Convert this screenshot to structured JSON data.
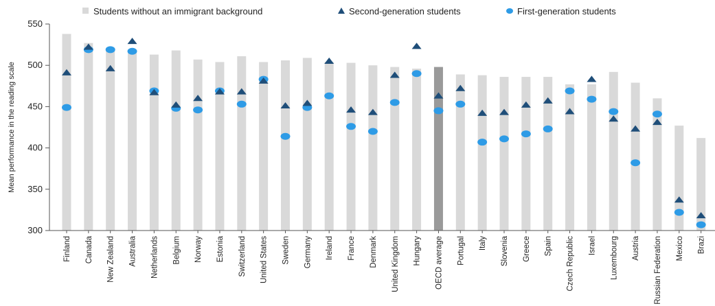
{
  "chart_data": {
    "type": "bar",
    "ylabel": "Mean performance in the reading scale",
    "ylim": [
      300,
      550
    ],
    "yticks": [
      300,
      350,
      400,
      450,
      500,
      550
    ],
    "legend": {
      "placement": "top",
      "entries": [
        {
          "key": "native",
          "label": "Students without an immigrant background",
          "marker": "bar"
        },
        {
          "key": "second",
          "label": "Second-generation students",
          "marker": "triangle"
        },
        {
          "key": "first",
          "label": "First-generation students",
          "marker": "circle"
        }
      ]
    },
    "colors": {
      "bar": "#d9d9d9",
      "bar_highlight": "#9a9a9a",
      "second": "#1f4e79",
      "first": "#2e9be6",
      "axis": "#555555"
    },
    "highlight_category": "OECD average",
    "categories": [
      "Finland",
      "Canada",
      "New Zealand",
      "Australia",
      "Netherlands",
      "Belgium",
      "Norway",
      "Estonia",
      "Switzerland",
      "United States",
      "Sweden",
      "Germany",
      "Ireland",
      "France",
      "Denmark",
      "United Kingdom",
      "Hungary",
      "OECD average",
      "Portugal",
      "Italy",
      "Slovenia",
      "Greece",
      "Spain",
      "Czech Republic",
      "Israel",
      "Luxembourg",
      "Austria",
      "Russian Federation",
      "Mexico",
      "Brazil"
    ],
    "category_labels": [
      "Finland",
      "Canada",
      "New Zealand",
      "Australia",
      "Netherlands",
      "Belgium",
      "Norway",
      "Estonia",
      "Switzerland",
      "United States",
      "Sweden",
      "Germany",
      "Ireland",
      "France",
      "Denmark",
      "United Kingdom",
      "Hungary",
      "OECD average",
      "Portugal",
      "Italy",
      "Slovenia",
      "Greece",
      "Spain",
      "Czech Republic",
      "Israel",
      "Luxembourg",
      "Austria",
      "Russian Federation",
      "Mexico",
      "Brazi"
    ],
    "series": [
      {
        "key": "native",
        "name": "Students without an immigrant background",
        "values": [
          538,
          527,
          520,
          519,
          513,
          518,
          507,
          504,
          511,
          504,
          506,
          509,
          504,
          503,
          500,
          498,
          496,
          498,
          489,
          488,
          486,
          486,
          486,
          477,
          477,
          492,
          479,
          460,
          427,
          412
        ]
      },
      {
        "key": "second",
        "name": "Second-generation students",
        "values": [
          491,
          522,
          496,
          529,
          467,
          452,
          460,
          468,
          468,
          481,
          451,
          454,
          505,
          446,
          443,
          488,
          523,
          463,
          472,
          442,
          443,
          452,
          457,
          444,
          483,
          435,
          423,
          431,
          337,
          318
        ]
      },
      {
        "key": "first",
        "name": "First-generation students",
        "values": [
          449,
          519,
          519,
          517,
          469,
          448,
          446,
          469,
          453,
          483,
          414,
          449,
          463,
          426,
          420,
          455,
          490,
          445,
          453,
          407,
          411,
          417,
          423,
          469,
          459,
          444,
          382,
          441,
          322,
          307
        ]
      }
    ]
  }
}
